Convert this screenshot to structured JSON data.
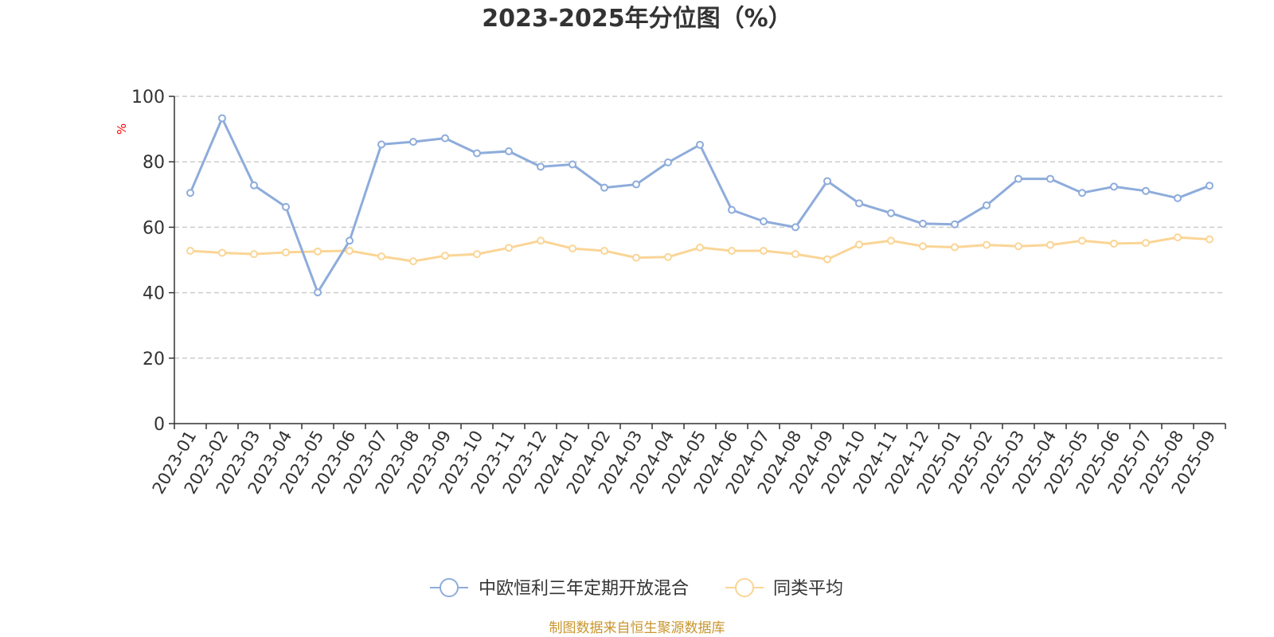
{
  "chart_data": {
    "type": "line",
    "title": "2023-2025年分位图（%）",
    "ylabel": "%",
    "ylim": [
      0,
      100
    ],
    "yticks": [
      "0",
      "20",
      "40",
      "60",
      "80",
      "100"
    ],
    "grid": true,
    "legend_position": "bottom-center",
    "categories": [
      "2023-01",
      "2023-02",
      "2023-03",
      "2023-04",
      "2023-05",
      "2023-06",
      "2023-07",
      "2023-08",
      "2023-09",
      "2023-10",
      "2023-11",
      "2023-12",
      "2024-01",
      "2024-02",
      "2024-03",
      "2024-04",
      "2024-05",
      "2024-06",
      "2024-07",
      "2024-08",
      "2024-09",
      "2024-10",
      "2024-11",
      "2024-12",
      "2025-01",
      "2025-02",
      "2025-03",
      "2025-04",
      "2025-05",
      "2025-06",
      "2025-07",
      "2025-08",
      "2025-09"
    ],
    "series": [
      {
        "name": "中欧恒利三年定期开放混合",
        "color": "#8eacdb",
        "values": [
          70.5,
          93.3,
          72.8,
          66.2,
          40.1,
          55.9,
          85.3,
          86.1,
          87.2,
          82.6,
          83.2,
          78.5,
          79.2,
          72.1,
          73.1,
          79.8,
          85.2,
          65.3,
          61.8,
          60.0,
          74.1,
          67.3,
          64.3,
          61.1,
          60.9,
          66.7,
          74.8,
          74.8,
          70.5,
          72.4,
          71.1,
          68.9,
          72.7
        ]
      },
      {
        "name": "同类平均",
        "color": "#fad596",
        "values": [
          52.8,
          52.2,
          51.8,
          52.3,
          52.6,
          52.8,
          51.1,
          49.6,
          51.3,
          51.8,
          53.7,
          55.9,
          53.5,
          52.8,
          50.7,
          50.9,
          53.8,
          52.8,
          52.8,
          51.8,
          50.2,
          54.7,
          55.9,
          54.2,
          53.9,
          54.6,
          54.2,
          54.6,
          55.9,
          55.0,
          55.2,
          56.9,
          56.3
        ]
      }
    ]
  },
  "source_note": "制图数据来自恒生聚源数据库"
}
